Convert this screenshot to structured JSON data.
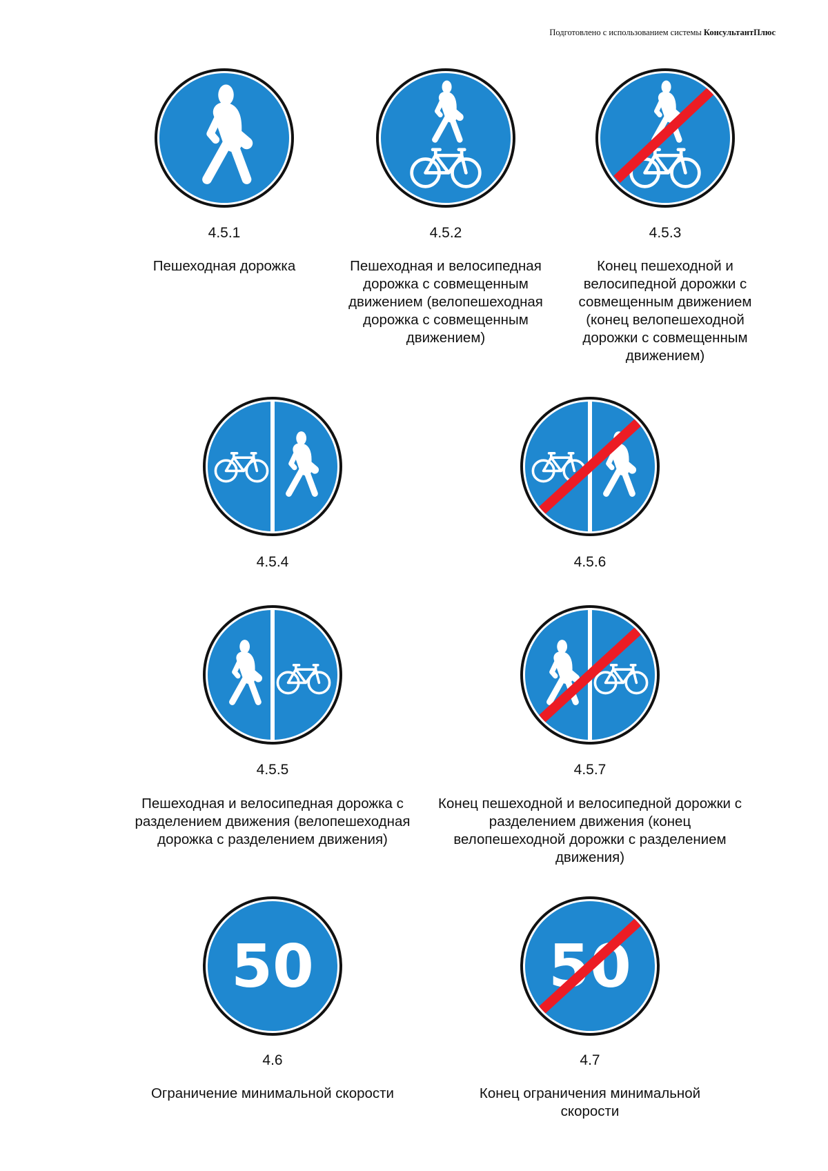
{
  "header": {
    "prefix": "Подготовлено с использованием системы",
    "brand": "КонсультантПлюс"
  },
  "colors": {
    "sign_blue": "#1f88d0",
    "strike_red": "#ec1c24",
    "border": "#111111"
  },
  "signs": [
    {
      "code": "4.5.1",
      "description": "Пешеходная дорожка",
      "icon": "pedestrian-icon"
    },
    {
      "code": "4.5.2",
      "description": "Пешеходная и велосипедная дорожка с совмещенным движением (велопешеходная дорожка с совмещенным движением)",
      "icon": "pedestrian-bicycle-icon"
    },
    {
      "code": "4.5.3",
      "description": "Конец пешеходной и велосипедной дорожки с совмещенным движением (конец велопешеходной дорожки с совмещенным движением)",
      "icon": "pedestrian-bicycle-end-icon"
    },
    {
      "code": "4.5.4",
      "description": "",
      "icon": "bicycle-pedestrian-split-icon"
    },
    {
      "code": "4.5.6",
      "description": "",
      "icon": "bicycle-pedestrian-split-end-icon"
    },
    {
      "code": "4.5.5",
      "description": "Пешеходная и велосипедная дорожка с разделением движения (велопешеходная дорожка с разделением движения)",
      "icon": "pedestrian-bicycle-split-icon"
    },
    {
      "code": "4.5.7",
      "description": "Конец пешеходной и велосипедной дорожки с разделением движения (конец велопешеходной дорожки с разделением движения)",
      "icon": "pedestrian-bicycle-split-end-icon"
    },
    {
      "code": "4.6",
      "description": "Ограничение минимальной скорости",
      "icon": "min-speed-icon",
      "speed": "50"
    },
    {
      "code": "4.7",
      "description": "Конец ограничения минимальной скорости",
      "icon": "min-speed-end-icon",
      "speed": "50"
    }
  ]
}
